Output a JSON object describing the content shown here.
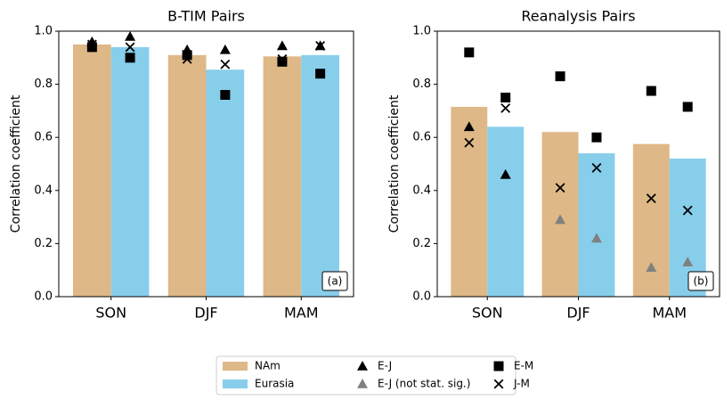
{
  "chart_data": [
    {
      "type": "bar",
      "title": "B-TIM Pairs",
      "ylabel": "Correlation coefficient",
      "panel_label": "(a)",
      "categories": [
        "SON",
        "DJF",
        "MAM"
      ],
      "ylim": [
        0,
        1
      ],
      "yticks": [
        {
          "value": 0,
          "label": "0.0"
        },
        {
          "value": 0.2,
          "label": "0.2"
        },
        {
          "value": 0.4,
          "label": "0.4"
        },
        {
          "value": 0.6,
          "label": "0.6"
        },
        {
          "value": 0.8,
          "label": "0.8"
        },
        {
          "value": 1,
          "label": "1.0"
        }
      ],
      "series": [
        {
          "name": "NAm",
          "color": "#deb887",
          "mark": "bar",
          "values": [
            0.95,
            0.91,
            0.905
          ]
        },
        {
          "name": "Eurasia",
          "color": "#87ceeb",
          "mark": "bar",
          "values": [
            0.94,
            0.855,
            0.91
          ]
        },
        {
          "name": "E-J",
          "color": "#000000",
          "mark": "triangle",
          "values": [
            [
              0.96,
              0.98
            ],
            [
              0.93,
              0.93
            ],
            [
              0.945,
              0.945
            ]
          ]
        },
        {
          "name": "E-J (not stat. sig.)",
          "color": "#808080",
          "mark": "triangle",
          "values": [
            [
              null,
              null
            ],
            [
              null,
              null
            ],
            [
              null,
              null
            ]
          ]
        },
        {
          "name": "E-M",
          "color": "#000000",
          "mark": "square",
          "values": [
            [
              0.94,
              0.9
            ],
            [
              0.91,
              0.76
            ],
            [
              0.885,
              0.84
            ]
          ]
        },
        {
          "name": "J-M",
          "color": "#000000",
          "mark": "x",
          "values": [
            [
              0.95,
              0.94
            ],
            [
              0.895,
              0.875
            ],
            [
              0.895,
              0.945
            ]
          ]
        }
      ]
    },
    {
      "type": "bar",
      "title": "Reanalysis Pairs",
      "ylabel": "Correlation coefficient",
      "panel_label": "(b)",
      "categories": [
        "SON",
        "DJF",
        "MAM"
      ],
      "ylim": [
        0,
        1
      ],
      "yticks": [
        {
          "value": 0,
          "label": "0.0"
        },
        {
          "value": 0.2,
          "label": "0.2"
        },
        {
          "value": 0.4,
          "label": "0.4"
        },
        {
          "value": 0.6,
          "label": "0.6"
        },
        {
          "value": 0.8,
          "label": "0.8"
        },
        {
          "value": 1,
          "label": "1.0"
        }
      ],
      "series": [
        {
          "name": "NAm",
          "color": "#deb887",
          "mark": "bar",
          "values": [
            0.715,
            0.62,
            0.575
          ]
        },
        {
          "name": "Eurasia",
          "color": "#87ceeb",
          "mark": "bar",
          "values": [
            0.64,
            0.54,
            0.52
          ]
        },
        {
          "name": "E-J",
          "color": "#000000",
          "mark": "triangle",
          "values": [
            [
              0.64,
              0.46
            ],
            [
              null,
              null
            ],
            [
              null,
              null
            ]
          ]
        },
        {
          "name": "E-J (not stat. sig.)",
          "color": "#808080",
          "mark": "triangle",
          "values": [
            [
              null,
              null
            ],
            [
              0.29,
              0.22
            ],
            [
              0.11,
              0.13
            ]
          ]
        },
        {
          "name": "E-M",
          "color": "#000000",
          "mark": "square",
          "values": [
            [
              0.92,
              0.75
            ],
            [
              0.83,
              0.6
            ],
            [
              0.775,
              0.715
            ]
          ]
        },
        {
          "name": "J-M",
          "color": "#000000",
          "mark": "x",
          "values": [
            [
              0.58,
              0.71
            ],
            [
              0.41,
              0.485
            ],
            [
              0.37,
              0.325
            ]
          ]
        }
      ]
    }
  ]
}
